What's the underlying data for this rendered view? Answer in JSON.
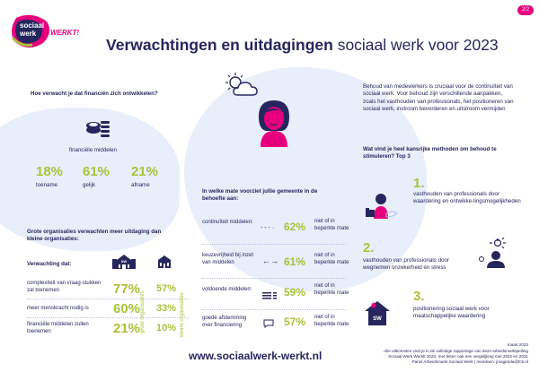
{
  "page_badge": "2/2",
  "logo": {
    "line1": "sociaal",
    "line2": "werk",
    "tag": "WERKT!"
  },
  "header": {
    "title_bold": "Verwachtingen en uitdagingen",
    "title_light": "sociaal werk voor 2023"
  },
  "finance": {
    "question": "Hoe verwacht je dat financiën zich ontwikkelen?",
    "icon_label": "financiële middelen",
    "stats": [
      {
        "value": "18%",
        "label": "toename"
      },
      {
        "value": "61%",
        "label": "gelijk"
      },
      {
        "value": "21%",
        "label": "afname"
      }
    ]
  },
  "orgs": {
    "title": "Grote organisaties verwachten meer uitdaging dan kleine organisaties:",
    "subtitle": "Verwachting dat:",
    "col_big": "grote organisaties",
    "col_small": "kleine organisaties",
    "rows": [
      {
        "label": "complexiteit van vraag-stukken zal toenemen",
        "big": "77%",
        "small": "57%"
      },
      {
        "label": "meer menskracht nodig is",
        "big": "60%",
        "small": "33%"
      },
      {
        "label": "financiële middelen zullen toenemen",
        "big": "21%",
        "small": "10%"
      }
    ]
  },
  "needs": {
    "question": "In welke mate voorziet jullie gemeente in de behoefte aan:",
    "rows": [
      {
        "label": "continuïteit middelen:",
        "value": "62%",
        "note": "niet of in beperkte mate"
      },
      {
        "label": "keuzevrijheid bij inzet van middelen",
        "value": "61%",
        "note": "niet of in beperkte mate"
      },
      {
        "label": "voldoende middelen:",
        "value": "59%",
        "note": "niet of in beperkte mate"
      },
      {
        "label": "goede afstemming over financiering",
        "value": "57%",
        "note": "niet of in beperkte mate"
      }
    ]
  },
  "retention": {
    "intro": "Behoud van medewerkers is cruciaal voor de continuïteit van sociaal werk. Voor behoud zijn verschillende aanpakken, zoals het vasthouden van professionals, het positioneren van sociaal werk, instroom bevorderen en uitstroom vermijden",
    "question": "Wat vind je heel kansrijke methoden om behoud te stimuleren? Top 3",
    "items": [
      {
        "rank": "1.",
        "text": "vasthouden van professionals door waardering en ontwikke-lingsmogelijkheden"
      },
      {
        "rank": "2.",
        "text": "vasthouden van professionals door wegnemen onzekerheid en stress"
      },
      {
        "rank": "3.",
        "text": "positionering sociaal werk voor maatschappelijke waardering"
      }
    ]
  },
  "footer": {
    "url": "www.sociaalwerk-werkt.nl",
    "date": "maart 2023",
    "notes": [
      "Alle uitkomsten vind je in de volledige rapportage van deze arbeidsmarktpeiling",
      "Sociaal Werk Werkt! 2023, met feiten ook een vergelijking met 2022 en 2021",
      "Panel Arbeidsmarkt Sociaal Werk | meedoen: jmagenda@fcb.nl"
    ]
  },
  "colors": {
    "navy": "#26265e",
    "green": "#a8c23a",
    "pink": "#e6007e",
    "blob": "#e9eefb"
  }
}
